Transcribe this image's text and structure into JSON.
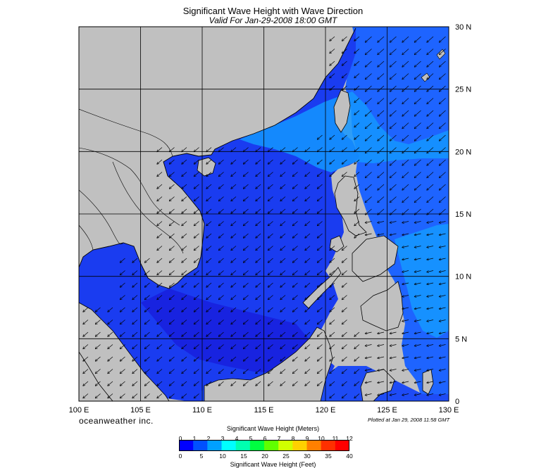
{
  "title": "Significant Wave Height with Wave Direction",
  "subtitle": "Valid For Jan-29-2008 18:00 GMT",
  "brand": "oceanweather inc.",
  "plotted": "Plotted at Jan 29, 2008 11:58 GMT",
  "map": {
    "lon_labels": [
      "100 E",
      "105 E",
      "110 E",
      "115 E",
      "120 E",
      "125 E",
      "130 E"
    ],
    "lat_labels": [
      "30 N",
      "25 N",
      "20 N",
      "15 N",
      "10 N",
      "5 N",
      "0"
    ],
    "lon_range": [
      100,
      130
    ],
    "lat_range": [
      0,
      30
    ],
    "colors": {
      "land": "#c0c0c0",
      "sea_low": "#1a1ae6",
      "sea_mid": "#1e64ff",
      "sea_high": "#1496ff",
      "coast": "#000000"
    }
  },
  "legend": {
    "meters_title": "Significant Wave Height (Meters)",
    "feet_title": "Significant Wave Height (Feet)",
    "meters_ticks": [
      "0",
      "1",
      "2",
      "3",
      "4",
      "5",
      "6",
      "7",
      "8",
      "9",
      "10",
      "11",
      "12"
    ],
    "feet_ticks": [
      "0",
      "5",
      "10",
      "15",
      "20",
      "25",
      "30",
      "35",
      "40"
    ],
    "colors": [
      "#0000ff",
      "#0050ff",
      "#00a0ff",
      "#00ffff",
      "#00ffb0",
      "#00ff40",
      "#60ff00",
      "#d0ff00",
      "#ffd000",
      "#ff8000",
      "#ff3000",
      "#ff0000"
    ]
  }
}
